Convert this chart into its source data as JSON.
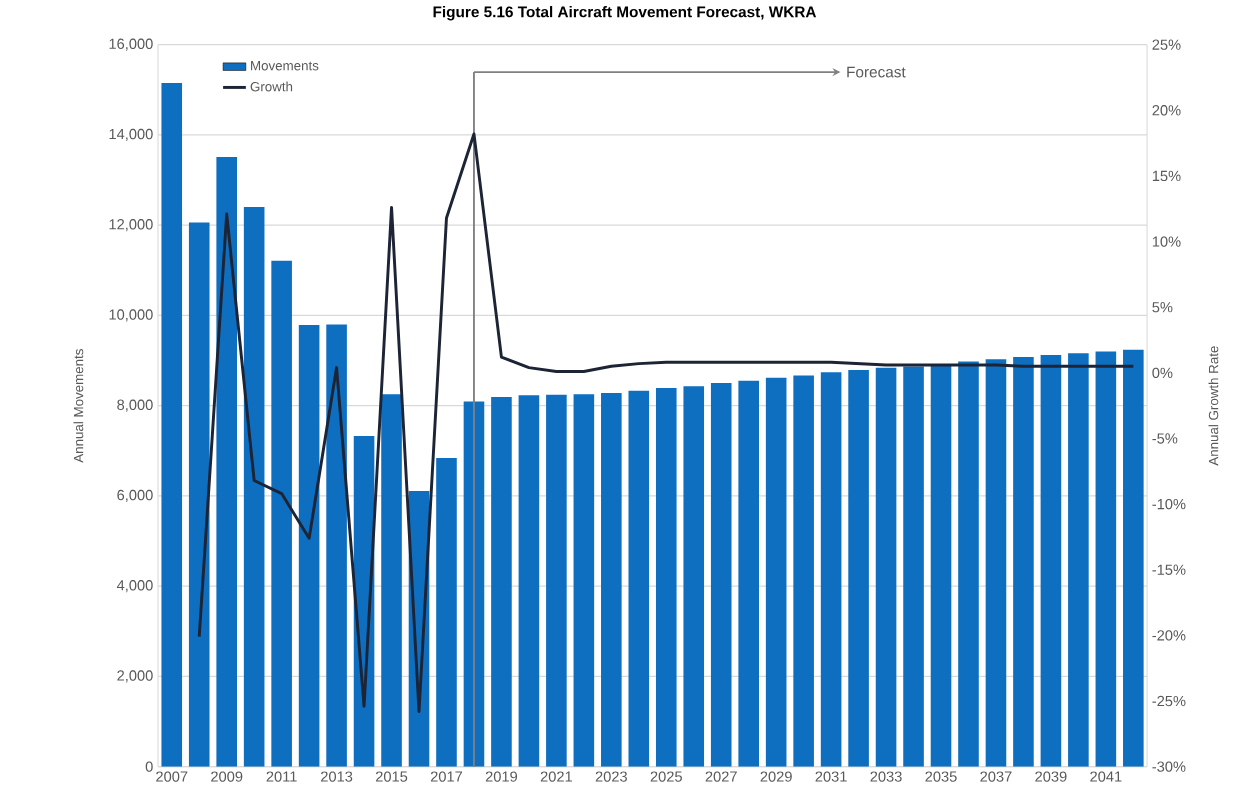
{
  "chart_data": {
    "type": "bar",
    "title": "Figure 5.16 Total Aircraft Movement Forecast, WKRA",
    "ylabel": "Annual Movements",
    "y2label": "Annual Growth Rate",
    "x": [
      2007,
      2008,
      2009,
      2010,
      2011,
      2012,
      2013,
      2014,
      2015,
      2016,
      2017,
      2018,
      2019,
      2020,
      2021,
      2022,
      2023,
      2024,
      2025,
      2026,
      2027,
      2028,
      2029,
      2030,
      2031,
      2032,
      2033,
      2034,
      2035,
      2036,
      2037,
      2038,
      2039,
      2040,
      2041,
      2042
    ],
    "xlim": [
      2006.5,
      2042.5
    ],
    "xticks": [
      2007,
      2009,
      2011,
      2013,
      2015,
      2017,
      2019,
      2021,
      2023,
      2025,
      2027,
      2029,
      2031,
      2033,
      2035,
      2037,
      2039,
      2041
    ],
    "ylim": [
      0,
      16000
    ],
    "yticks": [
      {
        "value": 0,
        "label": "0"
      },
      {
        "value": 2000,
        "label": "2,000"
      },
      {
        "value": 4000,
        "label": "4,000"
      },
      {
        "value": 6000,
        "label": "6,000"
      },
      {
        "value": 8000,
        "label": "8,000"
      },
      {
        "value": 10000,
        "label": "10,000"
      },
      {
        "value": 12000,
        "label": "12,000"
      },
      {
        "value": 14000,
        "label": "14,000"
      },
      {
        "value": 16000,
        "label": "16,000"
      }
    ],
    "y2lim": [
      -30,
      25
    ],
    "y2ticks": [
      {
        "value": -30,
        "label": "-30%"
      },
      {
        "value": -25,
        "label": "-25%"
      },
      {
        "value": -20,
        "label": "-20%"
      },
      {
        "value": -15,
        "label": "-15%"
      },
      {
        "value": -10,
        "label": "-10%"
      },
      {
        "value": -5,
        "label": "-5%"
      },
      {
        "value": 0,
        "label": "0%"
      },
      {
        "value": 5,
        "label": "5%"
      },
      {
        "value": 10,
        "label": "10%"
      },
      {
        "value": 15,
        "label": "15%"
      },
      {
        "value": 20,
        "label": "20%"
      },
      {
        "value": 25,
        "label": "25%"
      }
    ],
    "series": [
      {
        "name": "Movements",
        "color": "#0e6fc1",
        "values": [
          15150,
          12060,
          13510,
          12400,
          11210,
          9790,
          9800,
          7330,
          8250,
          6110,
          6840,
          8090,
          8190,
          8230,
          8240,
          8250,
          8280,
          8330,
          8390,
          8430,
          8500,
          8550,
          8620,
          8670,
          8740,
          8790,
          8840,
          8870,
          8900,
          8980,
          9030,
          9080,
          9120,
          9160,
          9200,
          9240
        ]
      },
      {
        "name": "Growth",
        "type": "line",
        "axis": "y2",
        "color": "#1c2436",
        "values": [
          null,
          -20.1,
          12.1,
          -8.2,
          -9.2,
          -12.6,
          0.4,
          -25.4,
          12.6,
          -25.8,
          11.8,
          18.2,
          1.2,
          0.4,
          0.1,
          0.1,
          0.5,
          0.7,
          0.8,
          0.8,
          0.8,
          0.8,
          0.8,
          0.8,
          0.8,
          0.7,
          0.6,
          0.6,
          0.6,
          0.6,
          0.6,
          0.5,
          0.5,
          0.5,
          0.5,
          0.5
        ]
      }
    ],
    "ref_lines": [
      {
        "axis": "x",
        "value": 2018,
        "label": "Forecast",
        "color": "#808080"
      }
    ],
    "grid": "y",
    "legend": "top left"
  }
}
